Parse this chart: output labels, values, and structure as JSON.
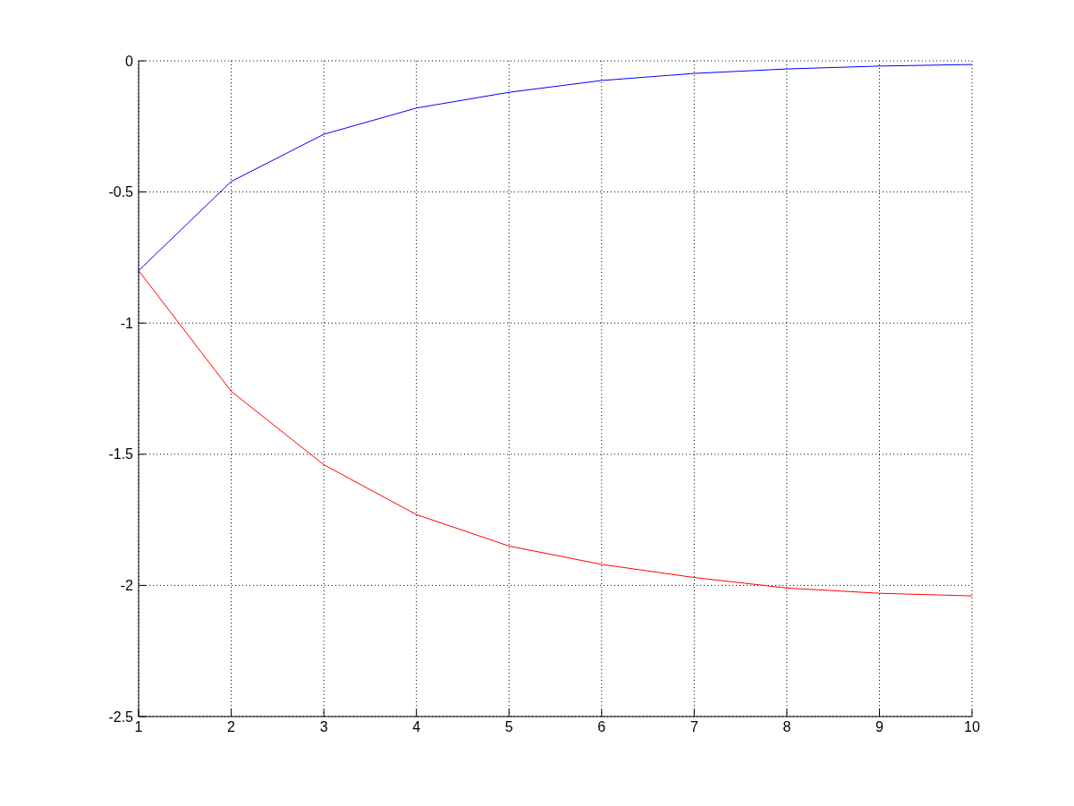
{
  "chart_data": {
    "type": "line",
    "x": [
      1,
      2,
      3,
      4,
      5,
      6,
      7,
      8,
      9,
      10
    ],
    "series": [
      {
        "color": "#0000ff",
        "values": [
          -0.8,
          -0.46,
          -0.28,
          -0.18,
          -0.12,
          -0.075,
          -0.048,
          -0.031,
          -0.02,
          -0.014
        ]
      },
      {
        "color": "#ff0000",
        "values": [
          -0.8,
          -1.26,
          -1.54,
          -1.73,
          -1.85,
          -1.92,
          -1.97,
          -2.01,
          -2.03,
          -2.04
        ]
      }
    ],
    "xlim": [
      1,
      10
    ],
    "xticks": [
      1,
      2,
      3,
      4,
      5,
      6,
      7,
      8,
      9,
      10
    ],
    "ylim": [
      -2.5,
      0
    ],
    "yticks": [
      -2.5,
      -2,
      -1.5,
      -1,
      -0.5,
      0
    ],
    "grid": true,
    "marker": "none",
    "line_style": "solid"
  }
}
